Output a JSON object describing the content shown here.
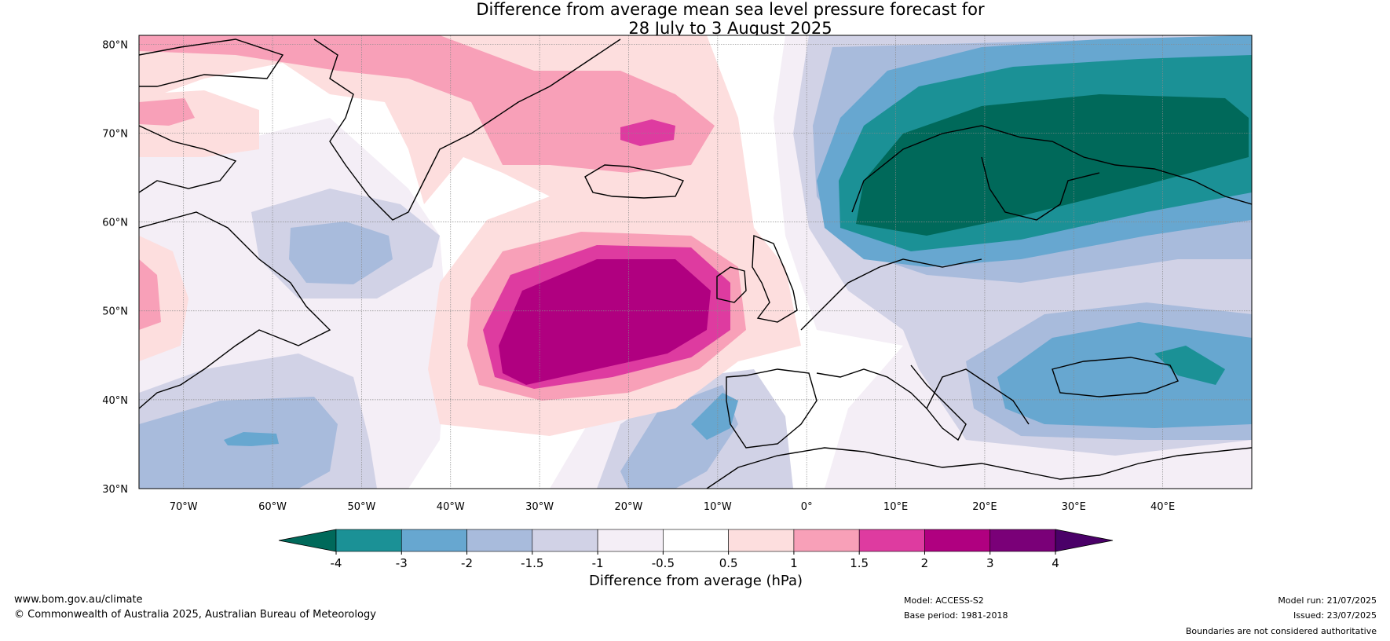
{
  "title_line1": "Difference from average mean sea level pressure forecast for",
  "title_line2": "28 July to 3 August 2025",
  "map": {
    "lon_range": [
      -75,
      50
    ],
    "lat_range": [
      30,
      81
    ],
    "graticule_step_deg": 10,
    "lat_labels": [
      "80°N",
      "70°N",
      "60°N",
      "50°N",
      "40°N",
      "30°N"
    ],
    "lon_labels": [
      "70°W",
      "60°W",
      "50°W",
      "40°W",
      "30°W",
      "20°W",
      "10°W",
      "0°",
      "10°E",
      "20°E",
      "30°E",
      "40°E"
    ],
    "anomaly_features": [
      {
        "name": "positive anomaly west of Ireland",
        "center_lon": -21,
        "center_lat": 48,
        "peak_hPa": 3
      },
      {
        "name": "positive anomaly east of Greenland",
        "center_lon": -20,
        "center_lat": 70,
        "peak_hPa": 1.5
      },
      {
        "name": "negative anomaly over Scandinavia",
        "center_lon": 20,
        "center_lat": 68,
        "peak_hPa": -4
      },
      {
        "name": "negative anomaly over Black Sea",
        "center_lon": 35,
        "center_lat": 43,
        "peak_hPa": -3
      }
    ]
  },
  "colorbar": {
    "label": "Difference from average (hPa)",
    "ticks": [
      "-4",
      "-3",
      "-2",
      "-1.5",
      "-1",
      "-0.5",
      "0.5",
      "1",
      "1.5",
      "2",
      "3",
      "4"
    ],
    "colors": [
      "#00695a",
      "#1b9196",
      "#67a7d0",
      "#a8bbdc",
      "#d1d2e6",
      "#f4eef6",
      "#ffffff",
      "#fddede",
      "#f8a0b8",
      "#de3ba0",
      "#b00080",
      "#7a0078",
      "#4a0068"
    ]
  },
  "footer": {
    "url": "www.bom.gov.au/climate",
    "copyright": "© Commonwealth of Australia 2025, Australian Bureau of Meteorology",
    "model": "Model: ACCESS-S2",
    "base_period": "Base period: 1981-2018",
    "model_run": "Model run: 21/07/2025",
    "issued": "Issued: 23/07/2025",
    "disclaimer": "Boundaries are not considered authoritative"
  }
}
